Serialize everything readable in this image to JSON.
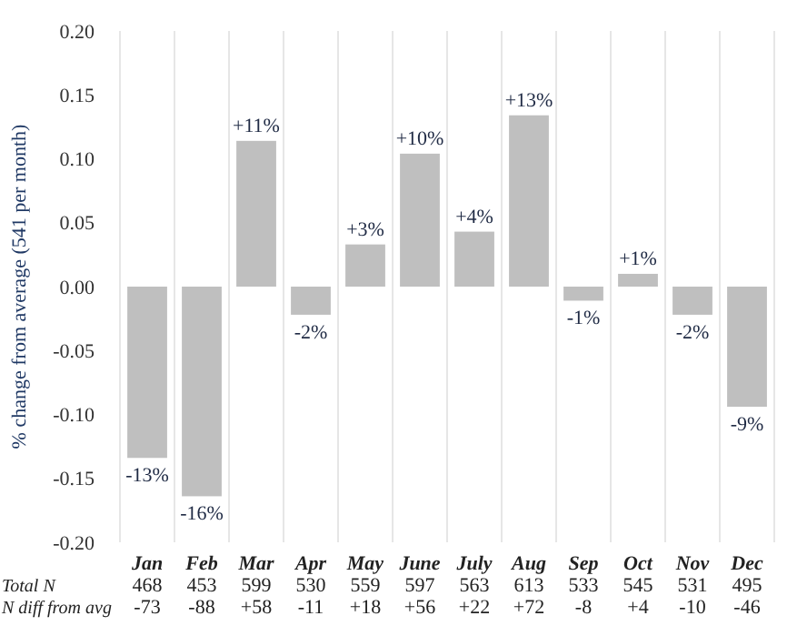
{
  "chart_data": {
    "type": "bar",
    "ylabel": "% change from average (541 per month)",
    "categories": [
      "Jan",
      "Feb",
      "Mar",
      "Apr",
      "May",
      "June",
      "July",
      "Aug",
      "Sep",
      "Oct",
      "Nov",
      "Dec"
    ],
    "values": [
      -0.134,
      -0.164,
      0.114,
      -0.022,
      0.033,
      0.104,
      0.043,
      0.134,
      -0.011,
      0.01,
      -0.022,
      -0.094
    ],
    "value_labels": [
      "-13%",
      "-16%",
      "+11%",
      "-2%",
      "+3%",
      "+10%",
      "+4%",
      "+13%",
      "-1%",
      "+1%",
      "-2%",
      "-9%"
    ],
    "color": "#bfbfbf",
    "ylim": [
      -0.2,
      0.2
    ],
    "yticks": [
      "-0.20",
      "-0.15",
      "-0.10",
      "-0.05",
      "0.00",
      "0.05",
      "0.10",
      "0.15",
      "0.20"
    ],
    "grid": "x",
    "annotations": [
      "Total N",
      "468",
      "453",
      "599",
      "530",
      "559",
      "597",
      "563",
      "613",
      "533",
      "545",
      "531",
      "495",
      "N diff from avg",
      "-73",
      "-88",
      "+58",
      "-11",
      "+18",
      "+56",
      "+22",
      "+72",
      "-8",
      "+4",
      "-10",
      "-46"
    ]
  }
}
